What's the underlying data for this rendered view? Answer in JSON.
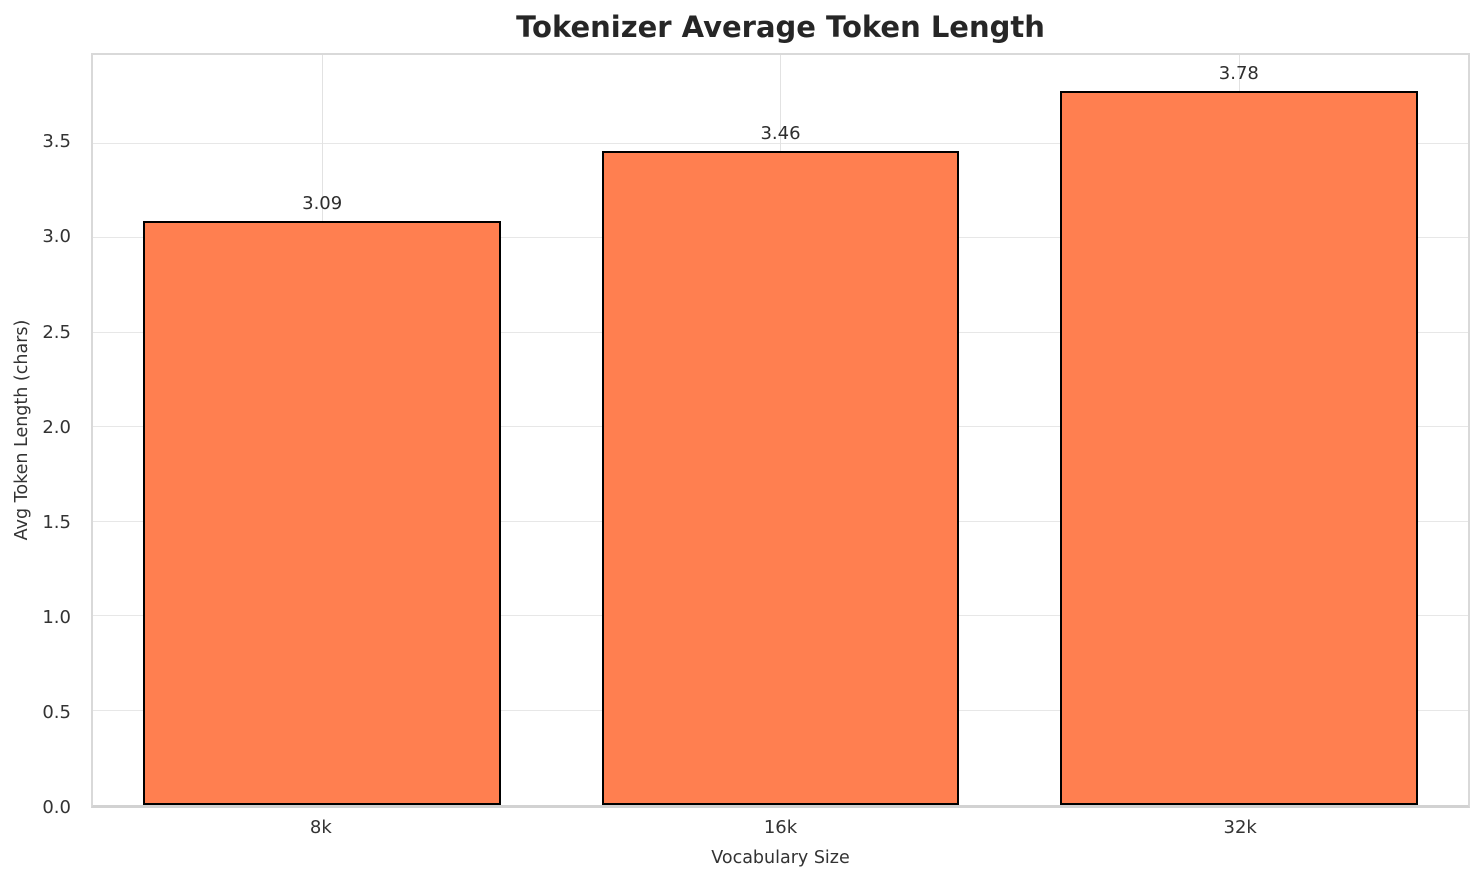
{
  "chart_data": {
    "type": "bar",
    "title": "Tokenizer Average Token Length",
    "xlabel": "Vocabulary Size",
    "ylabel": "Avg Token Length (chars)",
    "categories": [
      "8k",
      "16k",
      "32k"
    ],
    "values": [
      3.09,
      3.46,
      3.78
    ],
    "value_labels": [
      "3.09",
      "3.46",
      "3.78"
    ],
    "ytick_labels": [
      "0.0",
      "0.5",
      "1.0",
      "1.5",
      "2.0",
      "2.5",
      "3.0",
      "3.5"
    ],
    "ytick_values": [
      0,
      0.5,
      1,
      1.5,
      2,
      2.5,
      3,
      3.5
    ],
    "ylim": [
      0,
      3.97
    ],
    "grid": true,
    "legend_position": "none",
    "bar_color": "#FF7F50",
    "bar_edge_color": "#000000"
  }
}
